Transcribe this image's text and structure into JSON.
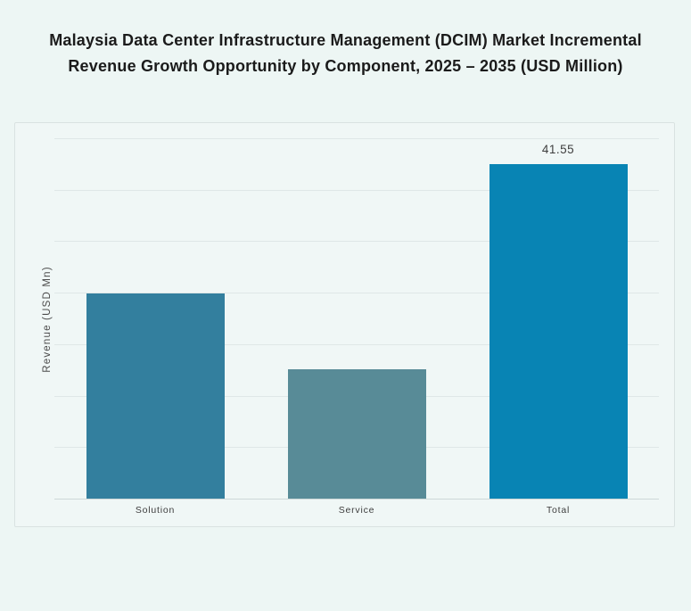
{
  "chart_data": {
    "type": "bar",
    "title": "Malaysia Data Center Infrastructure Management (DCIM) Market Incremental Revenue Growth Opportunity by Component, 2025 – 2035 (USD Million)",
    "ylabel": "Revenue (USD Mn)",
    "xlabel": "",
    "categories": [
      "Solution",
      "Service",
      "Total"
    ],
    "values": [
      25.5,
      16.05,
      41.55
    ],
    "data_labels": [
      "",
      "",
      "41.55"
    ],
    "bar_colors": [
      "#337f9e",
      "#588b97",
      "#0884b4"
    ],
    "ylim": [
      0,
      44.8
    ],
    "grid": true,
    "gridline_count": 8,
    "legend_position": "none"
  },
  "colors": {
    "page_bg": "#edf6f4",
    "panel_bg": "#f0f7f6",
    "panel_border": "#d9e2e1",
    "gridline": "#dfe7e7",
    "axis_line": "#cdd8d8",
    "title_text": "#1b1b1b",
    "ylabel_text": "#4c4c4c",
    "category_text": "#3d3d3d",
    "value_label_text": "#3e3e3e"
  }
}
